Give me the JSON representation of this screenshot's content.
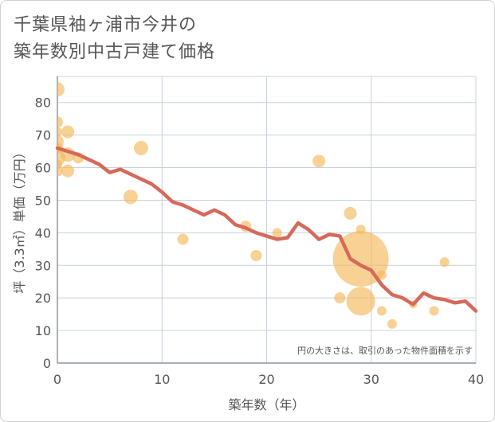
{
  "title_line1": "千葉県袖ヶ浦市今井の",
  "title_line2": "築年数別中古戸建て価格",
  "colors": {
    "bubble": "#f5b95a",
    "line": "#d46a5a",
    "grid": "#c8d0dc",
    "text": "#555555"
  },
  "chart_data": {
    "type": "scatter",
    "title": "千葉県袖ヶ浦市今井の築年数別中古戸建て価格",
    "xlabel": "築年数（年）",
    "ylabel": "坪（3.3㎡）単価（万円）",
    "xlim": [
      0,
      40
    ],
    "ylim": [
      0,
      88
    ],
    "xticks": [
      0,
      10,
      20,
      30,
      40
    ],
    "yticks": [
      0,
      10,
      20,
      30,
      40,
      50,
      60,
      70,
      80
    ],
    "grid": true,
    "note": "円の大きさは、取引のあった物件面積を示す",
    "bubbles": [
      {
        "x": 0,
        "y": 84,
        "r": 9
      },
      {
        "x": 0,
        "y": 74,
        "r": 7
      },
      {
        "x": 0,
        "y": 71,
        "r": 6
      },
      {
        "x": 0,
        "y": 68,
        "r": 8
      },
      {
        "x": 0,
        "y": 66,
        "r": 7
      },
      {
        "x": 0,
        "y": 63,
        "r": 10
      },
      {
        "x": 0,
        "y": 61,
        "r": 6
      },
      {
        "x": 0,
        "y": 59,
        "r": 7
      },
      {
        "x": 1,
        "y": 71,
        "r": 8
      },
      {
        "x": 1,
        "y": 64,
        "r": 9
      },
      {
        "x": 1,
        "y": 59,
        "r": 8
      },
      {
        "x": 2,
        "y": 63,
        "r": 7
      },
      {
        "x": 8,
        "y": 66,
        "r": 9
      },
      {
        "x": 7,
        "y": 51,
        "r": 9
      },
      {
        "x": 12,
        "y": 38,
        "r": 7
      },
      {
        "x": 18,
        "y": 42,
        "r": 7
      },
      {
        "x": 19,
        "y": 33,
        "r": 7
      },
      {
        "x": 21,
        "y": 40,
        "r": 6
      },
      {
        "x": 25,
        "y": 62,
        "r": 8
      },
      {
        "x": 27,
        "y": 20,
        "r": 7
      },
      {
        "x": 28,
        "y": 46,
        "r": 8
      },
      {
        "x": 29,
        "y": 41,
        "r": 6
      },
      {
        "x": 29,
        "y": 32,
        "r": 35
      },
      {
        "x": 29,
        "y": 19,
        "r": 18
      },
      {
        "x": 31,
        "y": 27,
        "r": 6
      },
      {
        "x": 31,
        "y": 16,
        "r": 6
      },
      {
        "x": 32,
        "y": 12,
        "r": 6
      },
      {
        "x": 34,
        "y": 18,
        "r": 5
      },
      {
        "x": 36,
        "y": 16,
        "r": 6
      },
      {
        "x": 37,
        "y": 31,
        "r": 6
      }
    ],
    "line": {
      "x": [
        0,
        1,
        2,
        3,
        4,
        5,
        6,
        7,
        8,
        9,
        10,
        11,
        12,
        13,
        14,
        15,
        16,
        17,
        18,
        19,
        20,
        21,
        22,
        23,
        24,
        25,
        26,
        27,
        28,
        29,
        30,
        31,
        32,
        33,
        34,
        35,
        36,
        37,
        38,
        39,
        40
      ],
      "y": [
        66,
        65,
        64,
        62.5,
        61,
        58.5,
        59.5,
        58,
        56.5,
        55,
        52.5,
        49.5,
        48.5,
        47,
        45.5,
        47,
        45.5,
        42.5,
        41.5,
        40,
        39,
        38,
        38.5,
        43,
        41,
        38,
        39.5,
        39,
        32,
        30,
        28.5,
        24,
        21,
        20,
        18,
        21.5,
        20,
        19.5,
        18.5,
        19,
        16
      ]
    }
  }
}
